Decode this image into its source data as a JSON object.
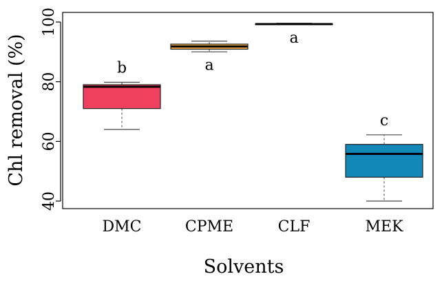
{
  "chart_data": {
    "type": "boxplot",
    "title": "",
    "xlabel": "Solvents",
    "ylabel": "Chl removal (%)",
    "ylim": [
      38,
      100.5
    ],
    "yticks": [
      40,
      60,
      80,
      100
    ],
    "grid": false,
    "categories": [
      "DMC",
      "CPME",
      "CLF",
      "MEK"
    ],
    "boxes": [
      {
        "name": "DMC",
        "min": 64,
        "q1": 71,
        "median": 78.3,
        "q3": 79,
        "max": 79.8,
        "color": "#f04060",
        "label": "b"
      },
      {
        "name": "CPME",
        "min": 90,
        "q1": 90.9,
        "median": 91.8,
        "q3": 92.6,
        "max": 93.6,
        "color": "#f5ad42",
        "label": "a"
      },
      {
        "name": "CLF",
        "min": 99.1,
        "q1": 99.1,
        "median": 99.3,
        "q3": 99.4,
        "max": 99.6,
        "color": "#ffffff",
        "label": "a"
      },
      {
        "name": "MEK",
        "min": 40,
        "q1": 48,
        "median": 55.8,
        "q3": 59,
        "max": 62.2,
        "color": "#1188b8",
        "label": "c"
      }
    ]
  }
}
